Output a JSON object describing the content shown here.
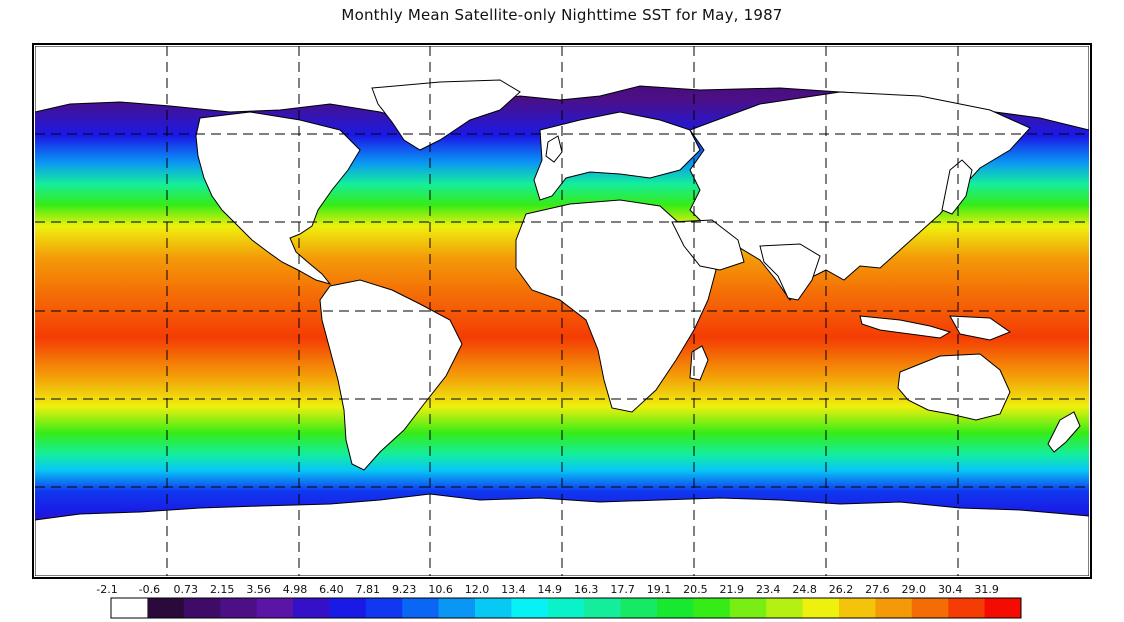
{
  "title": "Monthly Mean Satellite-only Nighttime SST for May, 1987",
  "map": {
    "projection": "equirectangular",
    "variable": "sea surface temperature",
    "land_color": "#ffffff",
    "coastline_color": "#000000",
    "grid_style": "dashed"
  },
  "colorbar": {
    "labels": [
      "-2.1",
      "-0.6",
      "0.73",
      "2.15",
      "3.56",
      "4.98",
      "6.40",
      "7.81",
      "9.23",
      "10.6",
      "12.0",
      "13.4",
      "14.9",
      "16.3",
      "17.7",
      "19.1",
      "20.5",
      "21.9",
      "23.4",
      "24.8",
      "26.2",
      "27.6",
      "29.0",
      "30.4",
      "31.9"
    ],
    "colors": [
      "#ffffff",
      "#2a0a3a",
      "#3e0c66",
      "#4c0f86",
      "#5a14a6",
      "#3410c8",
      "#1a1ae6",
      "#1038f0",
      "#0a66f4",
      "#0a96f4",
      "#08c8f4",
      "#06f2f4",
      "#0af2c8",
      "#14ee9c",
      "#16ea64",
      "#18e830",
      "#36ec16",
      "#78ee14",
      "#b4f012",
      "#eef00e",
      "#f4c40a",
      "#f49a08",
      "#f46c06",
      "#f43c04",
      "#f40c02"
    ]
  }
}
